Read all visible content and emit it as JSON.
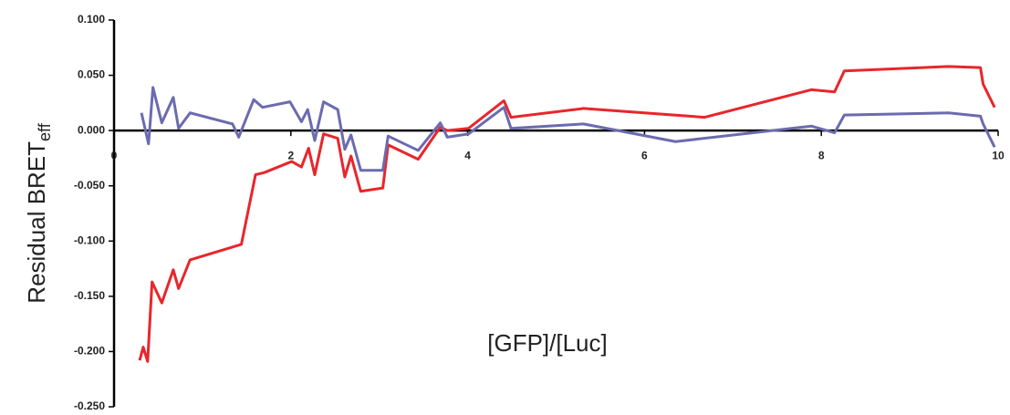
{
  "chart_data": {
    "type": "line",
    "y_label": "Residual BRET",
    "y_label_sub": "eff",
    "annotation": "[GFP]/[Luc]",
    "xlim": [
      0,
      10
    ],
    "xticks": [
      0,
      2,
      4,
      6,
      8,
      10
    ],
    "ylim": [
      -0.25,
      0.1
    ],
    "yticks": [
      {
        "value": 0.1,
        "label": "0.100"
      },
      {
        "value": 0.05,
        "label": "0.050"
      },
      {
        "value": 0,
        "label": "0.000"
      },
      {
        "value": -0.05,
        "label": "-0.050"
      },
      {
        "value": -0.1,
        "label": "-0.100"
      },
      {
        "value": -0.15,
        "label": "-0.150"
      },
      {
        "value": -0.2,
        "label": "-0.200"
      },
      {
        "value": -0.25,
        "label": "-0.250"
      }
    ],
    "series": [
      {
        "color": "#e8262b",
        "x": [
          0.29,
          0.33,
          0.38,
          0.43,
          0.54,
          0.67,
          0.73,
          0.86,
          1.44,
          1.6,
          1.7,
          2.01,
          2.12,
          2.2,
          2.27,
          2.37,
          2.53,
          2.61,
          2.68,
          2.79,
          3.04,
          3.1,
          3.44,
          3.69,
          3.77,
          4.01,
          4.41,
          4.49,
          5.31,
          6.68,
          7.89,
          8.15,
          8.26,
          9.44,
          9.8,
          9.83,
          9.96
        ],
        "values": [
          -0.208,
          -0.196,
          -0.209,
          -0.137,
          -0.156,
          -0.126,
          -0.143,
          -0.117,
          -0.103,
          -0.04,
          -0.038,
          -0.028,
          -0.033,
          -0.016,
          -0.04,
          -0.003,
          -0.007,
          -0.042,
          -0.023,
          -0.055,
          -0.052,
          -0.013,
          -0.026,
          0.003,
          0.0,
          0.002,
          0.027,
          0.012,
          0.02,
          0.012,
          0.037,
          0.035,
          0.054,
          0.058,
          0.057,
          0.042,
          0.021
        ]
      },
      {
        "color": "#6b6bb0",
        "x": [
          0.31,
          0.39,
          0.44,
          0.54,
          0.67,
          0.73,
          0.86,
          1.34,
          1.41,
          1.58,
          1.68,
          1.99,
          2.12,
          2.19,
          2.27,
          2.37,
          2.53,
          2.61,
          2.68,
          2.79,
          3.04,
          3.1,
          3.44,
          3.69,
          3.77,
          4.01,
          4.41,
          4.49,
          5.31,
          6.35,
          7.89,
          8.15,
          8.26,
          9.44,
          9.8,
          9.83,
          9.96
        ],
        "values": [
          0.016,
          -0.012,
          0.039,
          0.007,
          0.03,
          0.002,
          0.016,
          0.006,
          -0.006,
          0.028,
          0.021,
          0.026,
          0.008,
          0.019,
          -0.009,
          0.026,
          0.019,
          -0.017,
          -0.004,
          -0.036,
          -0.036,
          -0.005,
          -0.018,
          0.007,
          -0.006,
          -0.003,
          0.021,
          0.002,
          0.006,
          -0.01,
          0.004,
          -0.002,
          0.014,
          0.016,
          0.013,
          0.006,
          -0.015
        ]
      }
    ]
  }
}
